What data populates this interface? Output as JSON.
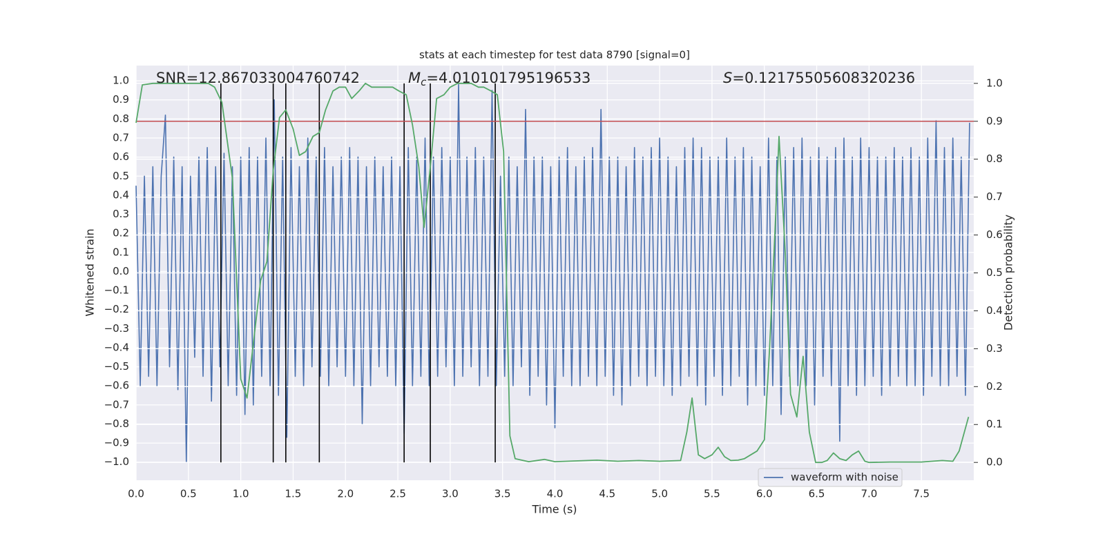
{
  "chart_data": {
    "type": "line",
    "title": "stats at each timestep for test data 8790 [signal=0]",
    "x_label": "Time (s)",
    "y_label": "Whitened strain",
    "y2_label": "Detection probability",
    "xlim": [
      0,
      8
    ],
    "ylim": [
      -1.095,
      1.08
    ],
    "y2lim": [
      -0.047,
      1.047
    ],
    "grid": true,
    "legend": "lower right",
    "xticks": [
      {
        "value": 0,
        "label": "0.0"
      },
      {
        "value": 0.5,
        "label": "0.5"
      },
      {
        "value": 1,
        "label": "1.0"
      },
      {
        "value": 1.5,
        "label": "1.5"
      },
      {
        "value": 2,
        "label": "2.0"
      },
      {
        "value": 2.5,
        "label": "2.5"
      },
      {
        "value": 3,
        "label": "3.0"
      },
      {
        "value": 3.5,
        "label": "3.5"
      },
      {
        "value": 4,
        "label": "4.0"
      },
      {
        "value": 4.5,
        "label": "4.5"
      },
      {
        "value": 5,
        "label": "5.0"
      },
      {
        "value": 5.5,
        "label": "5.5"
      },
      {
        "value": 6,
        "label": "6.0"
      },
      {
        "value": 6.5,
        "label": "6.5"
      },
      {
        "value": 7,
        "label": "7.0"
      },
      {
        "value": 7.5,
        "label": "7.5"
      }
    ],
    "yticks": [
      {
        "value": -1.0,
        "label": "−1.0"
      },
      {
        "value": -0.9,
        "label": "−0.9"
      },
      {
        "value": -0.8,
        "label": "−0.8"
      },
      {
        "value": -0.7,
        "label": "−0.7"
      },
      {
        "value": -0.6,
        "label": "−0.6"
      },
      {
        "value": -0.5,
        "label": "−0.5"
      },
      {
        "value": -0.4,
        "label": "−0.4"
      },
      {
        "value": -0.3,
        "label": "−0.3"
      },
      {
        "value": -0.2,
        "label": "−0.2"
      },
      {
        "value": -0.1,
        "label": "−0.1"
      },
      {
        "value": 0,
        "label": "0.0"
      },
      {
        "value": 0.1,
        "label": "0.1"
      },
      {
        "value": 0.2,
        "label": "0.2"
      },
      {
        "value": 0.3,
        "label": "0.3"
      },
      {
        "value": 0.4,
        "label": "0.4"
      },
      {
        "value": 0.5,
        "label": "0.5"
      },
      {
        "value": 0.6,
        "label": "0.6"
      },
      {
        "value": 0.7,
        "label": "0.7"
      },
      {
        "value": 0.8,
        "label": "0.8"
      },
      {
        "value": 0.9,
        "label": "0.9"
      },
      {
        "value": 1.0,
        "label": "1.0"
      }
    ],
    "y2ticks": [
      {
        "value": 0,
        "label": "0.0"
      },
      {
        "value": 0.1,
        "label": "0.1"
      },
      {
        "value": 0.2,
        "label": "0.2"
      },
      {
        "value": 0.3,
        "label": "0.3"
      },
      {
        "value": 0.4,
        "label": "0.4"
      },
      {
        "value": 0.5,
        "label": "0.5"
      },
      {
        "value": 0.6,
        "label": "0.6"
      },
      {
        "value": 0.7,
        "label": "0.7"
      },
      {
        "value": 0.8,
        "label": "0.8"
      },
      {
        "value": 0.9,
        "label": "0.9"
      },
      {
        "value": 1.0,
        "label": "1.0"
      }
    ],
    "annotations": [
      {
        "text": "SNR=12.867033004760742"
      },
      {
        "symbol": "M",
        "subscript": "c",
        "text": "=4.010101795196533"
      },
      {
        "symbol": "S",
        "text": "=0.12175505608320236"
      }
    ],
    "vlines": {
      "color": "#000000",
      "x": [
        0.81,
        1.31,
        1.43,
        1.75,
        2.56,
        2.81,
        3.43
      ]
    },
    "hlines": {
      "color": "#c44e52",
      "axis": "y2",
      "y": [
        0.9
      ]
    },
    "series": [
      {
        "name": "waveform with noise",
        "color": "#4c72b0",
        "axis": "y",
        "x": [
          0,
          0.04,
          0.08,
          0.12,
          0.16,
          0.2,
          0.24,
          0.28,
          0.32,
          0.36,
          0.4,
          0.44,
          0.48,
          0.52,
          0.56,
          0.6,
          0.64,
          0.68,
          0.72,
          0.76,
          0.8,
          0.84,
          0.88,
          0.92,
          0.96,
          1,
          1.04,
          1.08,
          1.12,
          1.16,
          1.2,
          1.24,
          1.28,
          1.32,
          1.36,
          1.4,
          1.44,
          1.48,
          1.52,
          1.56,
          1.6,
          1.64,
          1.68,
          1.72,
          1.76,
          1.8,
          1.84,
          1.88,
          1.92,
          1.96,
          2,
          2.04,
          2.08,
          2.12,
          2.16,
          2.2,
          2.24,
          2.28,
          2.32,
          2.36,
          2.4,
          2.44,
          2.48,
          2.52,
          2.56,
          2.6,
          2.64,
          2.68,
          2.72,
          2.76,
          2.8,
          2.84,
          2.88,
          2.92,
          2.96,
          3,
          3.04,
          3.08,
          3.12,
          3.16,
          3.2,
          3.24,
          3.28,
          3.32,
          3.36,
          3.4,
          3.44,
          3.48,
          3.52,
          3.56,
          3.6,
          3.64,
          3.68,
          3.72,
          3.76,
          3.8,
          3.84,
          3.88,
          3.92,
          3.96,
          4,
          4.04,
          4.08,
          4.12,
          4.16,
          4.2,
          4.24,
          4.28,
          4.32,
          4.36,
          4.4,
          4.44,
          4.48,
          4.52,
          4.56,
          4.6,
          4.64,
          4.68,
          4.72,
          4.76,
          4.8,
          4.84,
          4.88,
          4.92,
          4.96,
          5,
          5.04,
          5.08,
          5.12,
          5.16,
          5.2,
          5.24,
          5.28,
          5.32,
          5.36,
          5.4,
          5.44,
          5.48,
          5.52,
          5.56,
          5.6,
          5.64,
          5.68,
          5.72,
          5.76,
          5.8,
          5.84,
          5.88,
          5.92,
          5.96,
          6,
          6.04,
          6.08,
          6.12,
          6.16,
          6.2,
          6.24,
          6.28,
          6.32,
          6.36,
          6.4,
          6.44,
          6.48,
          6.52,
          6.56,
          6.6,
          6.64,
          6.68,
          6.72,
          6.76,
          6.8,
          6.84,
          6.88,
          6.92,
          6.96,
          7,
          7.04,
          7.08,
          7.12,
          7.16,
          7.2,
          7.24,
          7.28,
          7.32,
          7.36,
          7.4,
          7.44,
          7.48,
          7.52,
          7.56,
          7.6,
          7.64,
          7.68,
          7.72,
          7.76,
          7.8,
          7.84,
          7.88,
          7.92,
          7.96
        ],
        "values": [
          0.45,
          -0.6,
          0.5,
          -0.55,
          0.55,
          -0.6,
          0.5,
          0.82,
          -0.5,
          0.6,
          -0.62,
          0.55,
          -1.0,
          0.5,
          -0.45,
          0.6,
          -0.55,
          0.65,
          -0.68,
          0.55,
          -0.5,
          0.62,
          -0.6,
          0.55,
          -0.65,
          0.6,
          -0.75,
          0.65,
          -0.7,
          0.6,
          -0.55,
          0.7,
          -0.6,
          0.9,
          -0.65,
          0.6,
          -0.87,
          0.65,
          -0.55,
          0.55,
          -0.6,
          0.7,
          -0.5,
          0.6,
          -0.55,
          0.65,
          -0.6,
          0.55,
          -0.5,
          0.6,
          -0.55,
          0.65,
          -0.6,
          0.6,
          -0.8,
          0.55,
          -0.6,
          0.6,
          -0.5,
          0.55,
          -0.55,
          0.6,
          -0.6,
          0.55,
          -0.85,
          0.65,
          -0.6,
          0.6,
          -0.55,
          0.7,
          -0.6,
          0.6,
          -0.55,
          0.65,
          -0.5,
          0.6,
          -0.6,
          0.98,
          -0.55,
          0.6,
          -0.5,
          0.65,
          -0.6,
          0.6,
          -0.55,
          0.95,
          -0.6,
          0.5,
          -0.55,
          0.6,
          -0.6,
          0.55,
          -0.5,
          0.85,
          -0.65,
          0.6,
          -0.55,
          0.6,
          -0.7,
          0.55,
          -0.82,
          0.6,
          -0.55,
          0.65,
          -0.6,
          0.55,
          -0.6,
          0.6,
          -0.55,
          0.65,
          -0.6,
          0.85,
          -0.55,
          0.6,
          -0.65,
          0.6,
          -0.7,
          0.55,
          -0.6,
          0.65,
          -0.55,
          0.6,
          -0.6,
          0.65,
          -0.55,
          0.7,
          -0.6,
          0.6,
          -0.65,
          0.55,
          -0.6,
          0.65,
          -0.55,
          0.7,
          -0.6,
          0.65,
          -0.7,
          0.6,
          -0.55,
          0.6,
          -0.65,
          0.7,
          -0.6,
          0.6,
          -0.55,
          0.65,
          -0.7,
          0.6,
          -0.6,
          0.55,
          -0.65,
          0.7,
          -0.6,
          0.6,
          -0.75,
          0.6,
          -0.55,
          0.65,
          -0.6,
          0.7,
          -0.6,
          0.6,
          -0.7,
          0.65,
          -0.55,
          0.6,
          -0.6,
          0.65,
          -0.89,
          0.7,
          -0.6,
          0.6,
          -0.65,
          0.7,
          -0.6,
          0.65,
          -0.55,
          0.6,
          -0.65,
          0.6,
          -0.6,
          0.65,
          -0.55,
          0.6,
          -0.6,
          0.65,
          -0.6,
          0.6,
          -0.65,
          0.7,
          -0.55,
          0.79,
          -0.6,
          0.65,
          -0.6,
          0.7,
          -0.55,
          0.6,
          -0.65,
          0.78
        ]
      },
      {
        "color": "#55a868",
        "axis": "y2",
        "x": [
          0,
          0.06,
          0.16,
          0.69,
          0.75,
          0.82,
          0.92,
          1.0,
          1.06,
          1.11,
          1.19,
          1.25,
          1.31,
          1.37,
          1.43,
          1.5,
          1.56,
          1.62,
          1.69,
          1.75,
          1.81,
          1.88,
          1.94,
          2.0,
          2.06,
          2.13,
          2.19,
          2.25,
          2.32,
          2.38,
          2.45,
          2.51,
          2.58,
          2.64,
          2.7,
          2.75,
          2.81,
          2.87,
          2.94,
          3.0,
          3.07,
          3.14,
          3.2,
          3.27,
          3.32,
          3.39,
          3.45,
          3.51,
          3.57,
          3.62,
          3.75,
          3.9,
          4.0,
          4.2,
          4.4,
          4.6,
          4.8,
          5.0,
          5.2,
          5.26,
          5.31,
          5.37,
          5.43,
          5.5,
          5.56,
          5.62,
          5.68,
          5.75,
          5.81,
          5.87,
          5.93,
          6.0,
          6.05,
          6.1,
          6.14,
          6.2,
          6.25,
          6.31,
          6.37,
          6.43,
          6.49,
          6.55,
          6.6,
          6.66,
          6.72,
          6.78,
          6.84,
          6.9,
          6.96,
          7.0,
          7.2,
          7.5,
          7.7,
          7.8,
          7.86,
          7.95
        ],
        "values": [
          0.896,
          0.996,
          1.0,
          1.0,
          0.99,
          0.95,
          0.75,
          0.22,
          0.17,
          0.29,
          0.48,
          0.53,
          0.77,
          0.91,
          0.93,
          0.88,
          0.81,
          0.82,
          0.86,
          0.87,
          0.93,
          0.98,
          0.99,
          0.99,
          0.96,
          0.98,
          1.0,
          0.99,
          0.99,
          0.99,
          0.99,
          0.98,
          0.97,
          0.89,
          0.78,
          0.62,
          0.78,
          0.96,
          0.97,
          0.99,
          1.0,
          1.0,
          1.0,
          0.99,
          0.99,
          0.98,
          0.97,
          0.82,
          0.07,
          0.01,
          0.002,
          0.008,
          0.002,
          0.004,
          0.006,
          0.003,
          0.005,
          0.003,
          0.005,
          0.08,
          0.17,
          0.02,
          0.01,
          0.02,
          0.04,
          0.015,
          0.005,
          0.006,
          0.01,
          0.02,
          0.03,
          0.06,
          0.3,
          0.6,
          0.86,
          0.55,
          0.18,
          0.12,
          0.28,
          0.08,
          0.0,
          0.0,
          0.005,
          0.025,
          0.01,
          0.005,
          0.02,
          0.03,
          0.003,
          0.0,
          0.001,
          0.001,
          0.005,
          0.003,
          0.03,
          0.12
        ]
      }
    ]
  }
}
